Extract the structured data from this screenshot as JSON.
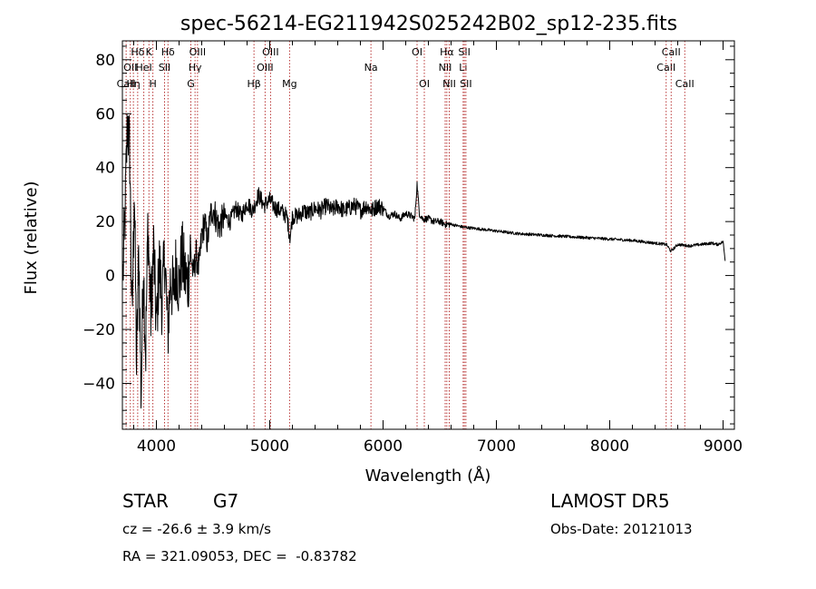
{
  "chart_data": {
    "type": "line",
    "title": "spec-56214-EG211942S025242B02_sp12-235.fits",
    "xlabel": "Wavelength (Å)",
    "ylabel": "Flux (relative)",
    "xlim": [
      3700,
      9100
    ],
    "ylim": [
      -57,
      87
    ],
    "xticks": [
      4000,
      5000,
      6000,
      7000,
      8000,
      9000
    ],
    "yticks": [
      -40,
      -20,
      0,
      20,
      40,
      60,
      80
    ],
    "grid": false,
    "line_color": "#000000",
    "marker_color": "#b22222",
    "series": [
      {
        "x": [
          3705,
          3725,
          3745,
          3765,
          3785,
          3805,
          3825,
          3845,
          3865,
          3885,
          3905,
          3925,
          3950,
          3975,
          4000,
          4025,
          4050,
          4075,
          4100,
          4125,
          4150,
          4175,
          4200,
          4225,
          4250,
          4275,
          4300,
          4325,
          4350,
          4375,
          4400,
          4425,
          4450,
          4475,
          4500,
          4550,
          4600,
          4650,
          4700,
          4750,
          4800,
          4850,
          4900,
          4950,
          5000,
          5050,
          5100,
          5150,
          5180,
          5200,
          5250,
          5300,
          5350,
          5400,
          5450,
          5500,
          5550,
          5600,
          5650,
          5700,
          5750,
          5800,
          5850,
          5900,
          5950,
          6000,
          6050,
          6100,
          6150,
          6200,
          6250,
          6280,
          6300,
          6320,
          6350,
          6400,
          6450,
          6500,
          6550,
          6600,
          6700,
          6800,
          6900,
          7000,
          7200,
          7400,
          7600,
          7800,
          8000,
          8200,
          8400,
          8500,
          8540,
          8600,
          8700,
          8800,
          8900,
          8950,
          9000,
          9020
        ],
        "y": [
          0,
          25,
          58,
          45,
          -20,
          35,
          -35,
          10,
          -45,
          5,
          -30,
          20,
          -15,
          10,
          -20,
          5,
          -10,
          8,
          -22,
          0,
          -8,
          5,
          -5,
          8,
          0,
          -3,
          10,
          0,
          8,
          2,
          15,
          20,
          12,
          22,
          25,
          18,
          22,
          20,
          25,
          22,
          27,
          24,
          30,
          26,
          28,
          25,
          24,
          22,
          14,
          22,
          22,
          24,
          23,
          25,
          24,
          26,
          24,
          26,
          24,
          25,
          26,
          24,
          26,
          24,
          26,
          25,
          22,
          23,
          21,
          23,
          22,
          21,
          34,
          23,
          21,
          21,
          20,
          20,
          19,
          19,
          18,
          17.5,
          17,
          16.5,
          15.5,
          15,
          14.5,
          14,
          13.5,
          13,
          12,
          11.5,
          9,
          11.5,
          11,
          11.5,
          12,
          11.5,
          12.5,
          5
        ]
      }
    ],
    "lines": [
      {
        "x": 3733,
        "labels": [
          "",
          "",
          "CaII"
        ]
      },
      {
        "x": 3770,
        "labels": [
          "",
          "OII",
          ""
        ]
      },
      {
        "x": 3797,
        "labels": [
          "",
          "",
          "Hη"
        ]
      },
      {
        "x": 3835,
        "labels": [
          "Hδ",
          "",
          ""
        ]
      },
      {
        "x": 3889,
        "labels": [
          "",
          "HeI",
          ""
        ]
      },
      {
        "x": 3934,
        "labels": [
          "K",
          "",
          ""
        ]
      },
      {
        "x": 3969,
        "labels": [
          "",
          "",
          "H"
        ]
      },
      {
        "x": 4072,
        "labels": [
          "",
          "SII",
          ""
        ]
      },
      {
        "x": 4102,
        "labels": [
          "Hδ",
          "",
          ""
        ]
      },
      {
        "x": 4304,
        "labels": [
          "",
          "",
          "G"
        ]
      },
      {
        "x": 4341,
        "labels": [
          "",
          "Hγ",
          ""
        ]
      },
      {
        "x": 4363,
        "labels": [
          "OIII",
          "",
          ""
        ]
      },
      {
        "x": 4861,
        "labels": [
          "",
          "",
          "Hβ"
        ]
      },
      {
        "x": 4959,
        "labels": [
          "",
          "OIII",
          ""
        ]
      },
      {
        "x": 5007,
        "labels": [
          "OIII",
          "",
          ""
        ]
      },
      {
        "x": 5175,
        "labels": [
          "",
          "",
          "Mg"
        ]
      },
      {
        "x": 5893,
        "labels": [
          "",
          "Na",
          ""
        ]
      },
      {
        "x": 6300,
        "labels": [
          "OI",
          "",
          ""
        ]
      },
      {
        "x": 6364,
        "labels": [
          "",
          "",
          "OI"
        ]
      },
      {
        "x": 6548,
        "labels": [
          "",
          "NII",
          ""
        ]
      },
      {
        "x": 6563,
        "labels": [
          "Hα",
          "",
          ""
        ]
      },
      {
        "x": 6584,
        "labels": [
          "",
          "",
          "NII"
        ]
      },
      {
        "x": 6707,
        "labels": [
          "",
          "Li",
          ""
        ]
      },
      {
        "x": 6717,
        "labels": [
          "SII",
          "",
          ""
        ]
      },
      {
        "x": 6731,
        "labels": [
          "",
          "",
          "SII"
        ]
      },
      {
        "x": 8498,
        "labels": [
          "",
          "CaII",
          ""
        ]
      },
      {
        "x": 8542,
        "labels": [
          "CaII",
          "",
          ""
        ]
      },
      {
        "x": 8662,
        "labels": [
          "",
          "",
          "CaII"
        ]
      }
    ]
  },
  "info": {
    "object_class": "STAR",
    "subclass": "G7",
    "survey": "LAMOST DR5",
    "redshift": "cz = -26.6 ± 3.9 km/s",
    "obs_date": "Obs-Date: 20121013",
    "coords": "RA = 321.09053, DEC =  -0.83782"
  }
}
